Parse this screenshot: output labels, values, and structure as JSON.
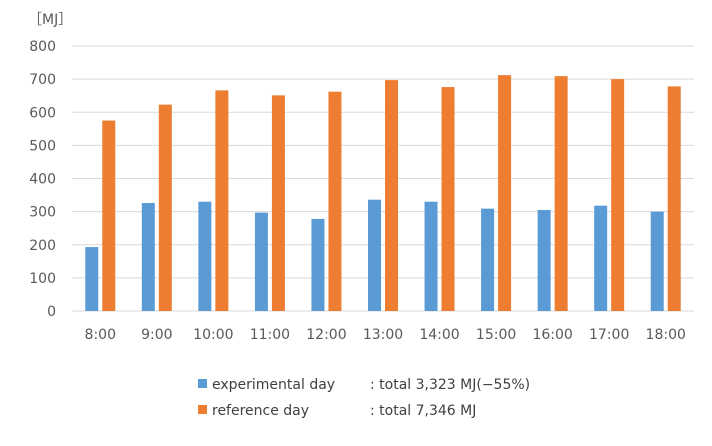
{
  "chart_data": {
    "type": "bar",
    "unit_label": "［MJ］",
    "categories": [
      "8:00",
      "9:00",
      "10:00",
      "11:00",
      "12:00",
      "13:00",
      "14:00",
      "15:00",
      "16:00",
      "17:00",
      "18:00"
    ],
    "series": [
      {
        "legend": "experimental day",
        "summary": ": total 3,323 MJ(−55%)",
        "color": "#5B9BD5",
        "values": [
          193,
          326,
          330,
          297,
          278,
          336,
          330,
          309,
          305,
          318,
          300
        ]
      },
      {
        "legend": "reference day",
        "summary": ": total 7,346 MJ",
        "color": "#ED7D31",
        "values": [
          575,
          623,
          666,
          651,
          662,
          697,
          676,
          712,
          709,
          700,
          678
        ]
      }
    ],
    "ylim": [
      0,
      800
    ],
    "yticks": [
      0,
      100,
      200,
      300,
      400,
      500,
      600,
      700,
      800
    ],
    "grid": true,
    "legend_position": "bottom"
  }
}
